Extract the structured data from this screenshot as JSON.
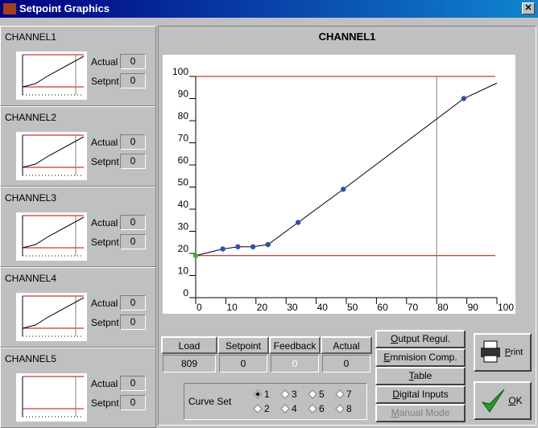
{
  "window": {
    "title": "Setpoint Graphics"
  },
  "channels": [
    {
      "name": "CHANNEL1",
      "actual_label": "Actual",
      "actual": "0",
      "setpnt_label": "Setpnt",
      "setpnt": "0"
    },
    {
      "name": "CHANNEL2",
      "actual_label": "Actual",
      "actual": "0",
      "setpnt_label": "Setpnt",
      "setpnt": "0"
    },
    {
      "name": "CHANNEL3",
      "actual_label": "Actual",
      "actual": "0",
      "setpnt_label": "Setpnt",
      "setpnt": "0"
    },
    {
      "name": "CHANNEL4",
      "actual_label": "Actual",
      "actual": "0",
      "setpnt_label": "Setpnt",
      "setpnt": "0"
    },
    {
      "name": "CHANNEL5",
      "actual_label": "Actual",
      "actual": "0",
      "setpnt_label": "Setpnt",
      "setpnt": "0"
    }
  ],
  "chart": {
    "type": "line",
    "title": "CHANNEL1",
    "xlim": [
      0,
      100
    ],
    "ylim": [
      0,
      100
    ],
    "xticks": [
      0,
      10,
      20,
      30,
      40,
      50,
      60,
      70,
      80,
      90,
      100
    ],
    "yticks": [
      0,
      10,
      20,
      30,
      40,
      50,
      60,
      70,
      80,
      90,
      100
    ],
    "line": {
      "color": "#000000",
      "x": [
        0,
        9,
        14,
        19,
        24,
        34,
        49,
        89,
        100
      ],
      "y": [
        19,
        22,
        23,
        23,
        24,
        34,
        49,
        90,
        97
      ]
    },
    "points": [
      {
        "x": 0,
        "y": 19,
        "color": "#40b040"
      },
      {
        "x": 9,
        "y": 22,
        "color": "#3050b0"
      },
      {
        "x": 14,
        "y": 23,
        "color": "#3050b0"
      },
      {
        "x": 19,
        "y": 23,
        "color": "#3050b0"
      },
      {
        "x": 24,
        "y": 24,
        "color": "#3050b0"
      },
      {
        "x": 34,
        "y": 34,
        "color": "#3050b0"
      },
      {
        "x": 49,
        "y": 49,
        "color": "#3050b0"
      },
      {
        "x": 89,
        "y": 90,
        "color": "#3050b0"
      }
    ],
    "limit_lines": {
      "color": "#c00000",
      "values": [
        100,
        19
      ]
    },
    "marker_x": {
      "color": "#808080",
      "value": 80
    }
  },
  "table": {
    "headers": [
      "Load",
      "Setpoint",
      "Feedback",
      "Actual"
    ],
    "values": [
      "809",
      "0",
      "0",
      "0"
    ]
  },
  "curve_set": {
    "label": "Curve Set",
    "options": [
      "1",
      "3",
      "5",
      "7",
      "2",
      "4",
      "6",
      "8"
    ],
    "selected": 0
  },
  "buttons": [
    "Output Regul.",
    "Emmision Comp.",
    "Table",
    "Digital Inputs",
    "Manual Mode"
  ],
  "print": "Print",
  "ok": "OK"
}
